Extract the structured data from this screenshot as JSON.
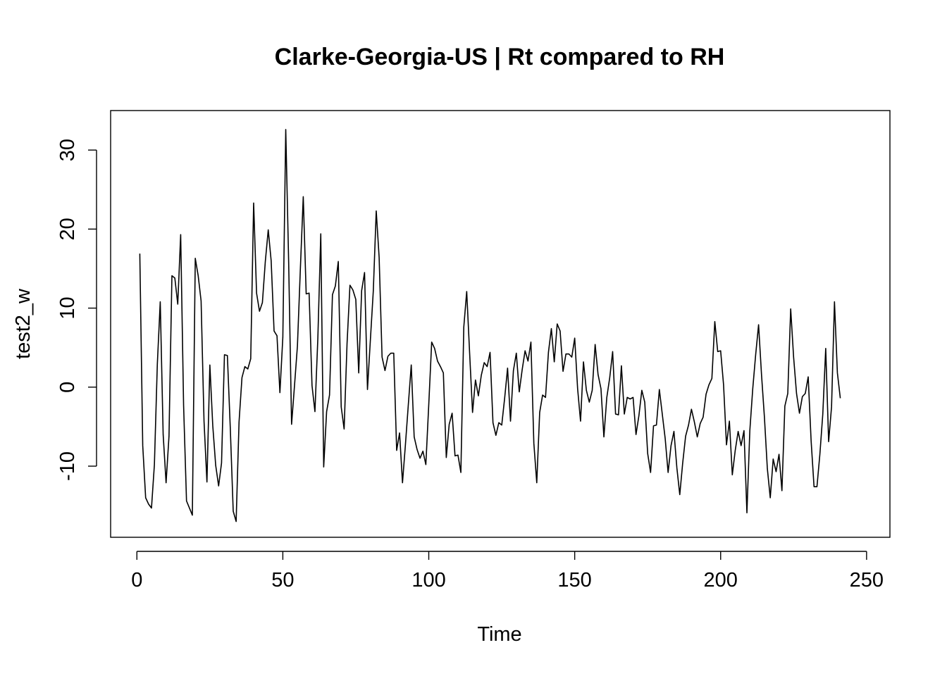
{
  "chart_data": {
    "type": "line",
    "title": "Clarke-Georgia-US | Rt compared to RH",
    "xlabel": "Time",
    "ylabel": "test2_w",
    "xlim": [
      -9,
      258
    ],
    "ylim": [
      -19,
      35
    ],
    "xticks": [
      0,
      50,
      100,
      150,
      200,
      250
    ],
    "yticks": [
      -10,
      0,
      10,
      20,
      30
    ],
    "xtick_labels": [
      "0",
      "50",
      "100",
      "150",
      "200",
      "250"
    ],
    "ytick_labels": [
      "-10",
      "0",
      "10",
      "20",
      "30"
    ],
    "grid": false,
    "series": [
      {
        "color": "#000000",
        "x_start": 1,
        "values": [
          16.9,
          -7.4,
          -14.0,
          -14.8,
          -15.3,
          -9.8,
          2.9,
          10.8,
          -6.0,
          -12.1,
          -6.2,
          14.1,
          13.8,
          10.5,
          19.3,
          -2.3,
          -14.4,
          -15.3,
          -16.2,
          16.3,
          14.1,
          10.9,
          -4.3,
          -12.0,
          2.8,
          -4.9,
          -9.9,
          -12.5,
          -9.6,
          4.1,
          4.0,
          -5.2,
          -15.7,
          -17.0,
          -4.4,
          1.2,
          2.6,
          2.3,
          3.6,
          23.3,
          11.9,
          9.6,
          10.7,
          15.9,
          19.9,
          16.0,
          7.1,
          6.5,
          -0.7,
          6.3,
          32.6,
          15.8,
          -4.7,
          0.2,
          5.2,
          14.9,
          24.1,
          11.8,
          11.9,
          0.2,
          -3.1,
          6.2,
          19.4,
          -10.1,
          -3.1,
          -1.0,
          11.7,
          12.8,
          15.9,
          -2.5,
          -5.3,
          5.5,
          12.9,
          12.3,
          11.1,
          1.8,
          12.2,
          14.5,
          -0.3,
          6.0,
          12.2,
          22.3,
          16.4,
          3.8,
          2.1,
          3.9,
          4.3,
          4.3,
          -8.0,
          -5.8,
          -12.1,
          -7.3,
          -2.2,
          2.8,
          -6.3,
          -7.9,
          -9.0,
          -8.1,
          -9.8,
          -2.2,
          5.7,
          4.9,
          3.3,
          2.6,
          1.8,
          -8.9,
          -4.7,
          -3.3,
          -8.7,
          -8.6,
          -10.8,
          7.6,
          12.1,
          4.3,
          -3.2,
          0.9,
          -1.1,
          1.5,
          3.1,
          2.6,
          4.4,
          -4.5,
          -6.1,
          -4.5,
          -4.8,
          -1.4,
          2.4,
          -4.3,
          2.1,
          4.3,
          -0.6,
          2.2,
          4.6,
          3.3,
          5.7,
          -7.1,
          -12.1,
          -3.2,
          -1.0,
          -1.3,
          4.4,
          7.4,
          3.2,
          8.0,
          7.1,
          2.0,
          4.2,
          4.2,
          3.8,
          6.2,
          -0.2,
          -4.3,
          3.2,
          -0.4,
          -1.9,
          -0.4,
          5.4,
          1.6,
          -0.2,
          -6.3,
          -1.3,
          1.2,
          4.5,
          -3.4,
          -3.5,
          2.7,
          -3.4,
          -1.3,
          -1.5,
          -1.3,
          -6.0,
          -3.6,
          -0.4,
          -1.9,
          -8.4,
          -10.8,
          -4.9,
          -4.8,
          -0.3,
          -3.4,
          -6.5,
          -10.8,
          -7.4,
          -5.6,
          -10.2,
          -13.6,
          -9.6,
          -6.2,
          -4.8,
          -2.8,
          -4.4,
          -6.3,
          -4.6,
          -3.8,
          -0.9,
          0.3,
          1.1,
          8.3,
          4.5,
          4.6,
          0.3,
          -7.3,
          -4.3,
          -11.1,
          -8.0,
          -5.6,
          -7.4,
          -5.5,
          -15.9,
          -5.5,
          -0.2,
          4.1,
          7.9,
          1.6,
          -3.8,
          -10.3,
          -14.0,
          -9.1,
          -10.7,
          -8.5,
          -13.1,
          -2.4,
          -0.8,
          9.9,
          3.8,
          -0.8,
          -3.3,
          -1.2,
          -0.8,
          1.3,
          -6.8,
          -12.6,
          -12.6,
          -8.5,
          -3.4,
          4.9,
          -6.9,
          -2.5,
          10.8,
          1.8,
          -1.4
        ]
      }
    ]
  }
}
